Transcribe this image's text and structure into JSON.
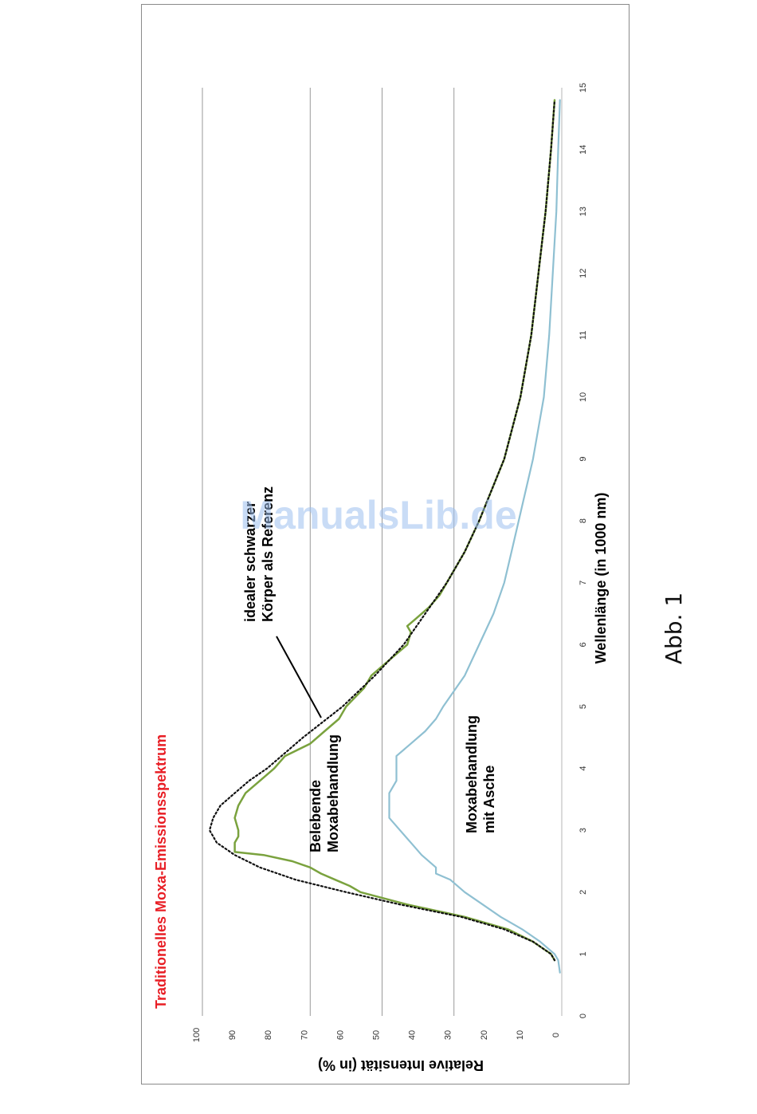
{
  "watermark": "ManualsLib.de",
  "figure_caption": "Abb. 1",
  "colors": {
    "title": "#e81e25",
    "green_series": "#7aa23e",
    "blue_series": "#8fc0d2",
    "reference_curve": "#111111",
    "gridline": "#9a9a9a"
  },
  "chart_data": {
    "type": "line",
    "orientation": "rotated 90 degrees counter-clockwise",
    "title": "Traditionelles Moxa-Emissionsspektrum",
    "xlabel": "Wellenlänge (in 1000 nm)",
    "ylabel": "Relative Intensität (in %)",
    "xlim": [
      0,
      15
    ],
    "ylim": [
      0,
      100
    ],
    "x_ticks": [
      "0",
      "1",
      "2",
      "3",
      "4",
      "5",
      "6",
      "7",
      "8",
      "9",
      "10",
      "11",
      "12",
      "13",
      "14",
      "15"
    ],
    "y_ticks": [
      "0",
      "10",
      "20",
      "30",
      "40",
      "50",
      "60",
      "70",
      "80",
      "90",
      "100"
    ],
    "gridlines_y": [
      30,
      50,
      70,
      100
    ],
    "annotations": [
      {
        "lines": [
          "idealer schwarzer",
          "Körper als Referenz"
        ],
        "x": 6.5
      },
      {
        "lines": [
          "Belebende",
          "Moxabehandlung"
        ],
        "x": 3.9
      },
      {
        "lines": [
          "Moxabehandlung",
          "mit Asche"
        ],
        "x": 3.8
      }
    ],
    "series": [
      {
        "style": "dotted",
        "x": [
          0.9,
          1.0,
          1.2,
          1.4,
          1.6,
          1.8,
          2.0,
          2.2,
          2.4,
          2.6,
          2.8,
          3.0,
          3.2,
          3.4,
          3.6,
          3.8,
          4.0,
          4.5,
          5.0,
          5.5,
          6.0,
          6.5,
          7.0,
          7.5,
          8,
          9,
          10,
          11,
          12,
          13,
          14,
          14.8
        ],
        "y": [
          2,
          3,
          8,
          16,
          28,
          45,
          60,
          74,
          84,
          91,
          96,
          98,
          97,
          95,
          91,
          87,
          82,
          72,
          61,
          52,
          44,
          38,
          32,
          27,
          23,
          16,
          11.5,
          8.5,
          6.5,
          4.5,
          3,
          2
        ]
      },
      {
        "style": "solid",
        "x": [
          0.9,
          1.0,
          1.2,
          1.4,
          1.6,
          1.8,
          2.0,
          2.1,
          2.2,
          2.3,
          2.4,
          2.5,
          2.6,
          2.65,
          2.7,
          2.8,
          2.9,
          3.0,
          3.2,
          3.4,
          3.6,
          3.8,
          4.0,
          4.2,
          4.4,
          4.6,
          4.8,
          5.0,
          5.3,
          5.5,
          5.8,
          6.0,
          6.2,
          6.3,
          6.4,
          6.6,
          6.8,
          7.0,
          7.5,
          8,
          9,
          10,
          11,
          12,
          13,
          14,
          14.8
        ],
        "y": [
          2,
          3,
          8,
          15,
          27,
          43,
          56,
          59,
          63,
          67,
          70,
          75,
          83,
          91,
          91,
          91,
          90,
          90,
          91,
          90,
          88,
          84,
          80,
          77,
          70,
          66,
          62,
          60,
          55,
          53,
          47,
          43,
          42,
          43,
          41,
          37,
          34,
          32,
          27,
          23,
          16,
          11.5,
          8.5,
          6.5,
          4.5,
          3,
          2
        ]
      },
      {
        "style": "solid",
        "x": [
          0.7,
          0.9,
          1.0,
          1.2,
          1.4,
          1.6,
          1.8,
          2.0,
          2.2,
          2.3,
          2.4,
          2.6,
          2.8,
          3.0,
          3.2,
          3.4,
          3.6,
          3.8,
          4.0,
          4.2,
          4.4,
          4.6,
          4.8,
          5.0,
          5.5,
          6.0,
          6.5,
          7.0,
          7.5,
          8,
          9,
          10,
          11,
          12,
          13,
          14,
          14.8
        ],
        "y": [
          0.5,
          1,
          2,
          6,
          11,
          17,
          22,
          27,
          31,
          35,
          35,
          39,
          42,
          45,
          48,
          48,
          48,
          46,
          46,
          46,
          42,
          38,
          35,
          33,
          27,
          23,
          19,
          16,
          14,
          12,
          8,
          5,
          3.5,
          2.5,
          1.5,
          1,
          0.5
        ]
      }
    ]
  }
}
